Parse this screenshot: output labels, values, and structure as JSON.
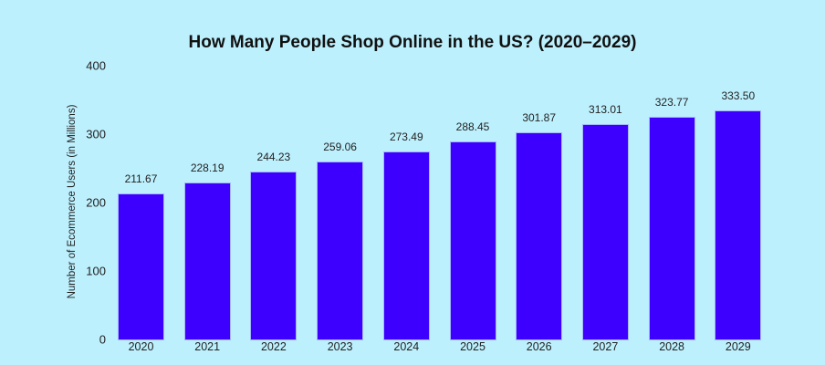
{
  "chart_data": {
    "type": "bar",
    "title": "How Many People Shop Online in the US? (2020–2029)",
    "xlabel": "",
    "ylabel": "Number of Ecommerce Users (in Millions)",
    "categories": [
      "2020",
      "2021",
      "2022",
      "2023",
      "2024",
      "2025",
      "2026",
      "2027",
      "2028",
      "2029"
    ],
    "values": [
      211.67,
      228.19,
      244.23,
      259.06,
      273.49,
      288.45,
      301.87,
      313.01,
      323.77,
      333.5
    ],
    "value_labels": [
      "211.67",
      "228.19",
      "244.23",
      "259.06",
      "273.49",
      "288.45",
      "301.87",
      "313.01",
      "323.77",
      "333.50"
    ],
    "ylim": [
      0,
      400
    ],
    "yticks": [
      "0",
      "100",
      "200",
      "300",
      "400"
    ],
    "grid": false,
    "legend": null,
    "bar_color": "#3d00ff",
    "background": "#bdf0fd"
  }
}
